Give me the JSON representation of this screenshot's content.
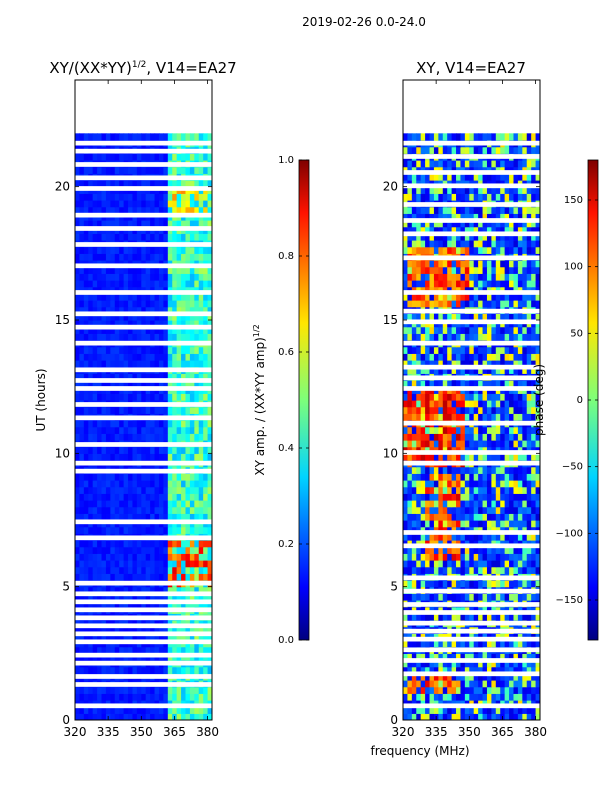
{
  "figure": {
    "suptitle": "2019-02-26 0.0-24.0",
    "xlabel": "frequency (MHz)"
  },
  "chart_data": [
    {
      "type": "heatmap",
      "title_main": "XY/(XX*YY)",
      "title_exp": "1/2",
      "title_rest": ", V14=EA27",
      "xlabel": "",
      "ylabel": "UT (hours)",
      "x_range": [
        320,
        382
      ],
      "y_range": [
        0,
        24
      ],
      "x_ticks": [
        320,
        335,
        350,
        365,
        380
      ],
      "y_ticks": [
        0,
        5,
        10,
        15,
        20
      ],
      "data_extent_hours": [
        0,
        22
      ],
      "colorbar": {
        "label_main": "XY amp. / (XX*YY amp)",
        "label_exp": "1/2",
        "range": [
          0.0,
          1.0
        ],
        "ticks": [
          "0.0",
          "0.2",
          "0.4",
          "0.6",
          "0.8",
          "1.0"
        ],
        "tick_values": [
          0.0,
          0.2,
          0.4,
          0.6,
          0.8,
          1.0
        ]
      },
      "background_level": 0.12,
      "hot_band_mhz": [
        362,
        380
      ],
      "bright_spots": [
        {
          "hour_start": 5.0,
          "hour_end": 6.5,
          "mhz_start": 362,
          "mhz_end": 380,
          "level": 0.9
        },
        {
          "hour_start": 19.0,
          "hour_end": 19.8,
          "mhz_start": 362,
          "mhz_end": 378,
          "level": 0.75
        }
      ],
      "blank_rows_hours": [
        0.5,
        1.3,
        1.6,
        2.1,
        2.4,
        2.9,
        3.2,
        3.5,
        3.8,
        4.1,
        4.4,
        4.7,
        5.1,
        6.8,
        7.4,
        9.3,
        9.6,
        10.3,
        11.3,
        11.8,
        12.4,
        12.7,
        13.1,
        14.1,
        14.7,
        15.2,
        16.0,
        17.0,
        17.8,
        18.4,
        18.9,
        19.9,
        20.3,
        20.8,
        21.3,
        21.6
      ]
    },
    {
      "type": "heatmap",
      "title_main": "XY, V14=EA27",
      "xlabel": "",
      "ylabel": "",
      "x_range": [
        320,
        382
      ],
      "y_range": [
        0,
        24
      ],
      "x_ticks": [
        320,
        335,
        350,
        365,
        380
      ],
      "y_ticks": [
        0,
        5,
        10,
        15,
        20
      ],
      "data_extent_hours": [
        0,
        22
      ],
      "colorbar": {
        "label_main": "phase (deg)",
        "range": [
          -180,
          180
        ],
        "ticks": [
          "150",
          "100",
          "50",
          "0",
          "−50",
          "−100",
          "−150"
        ],
        "tick_values": [
          150,
          100,
          50,
          0,
          -50,
          -100,
          -150
        ]
      },
      "hot_regions": [
        {
          "hour_start": 9.5,
          "hour_end": 12.3,
          "mhz_start": 320,
          "mhz_end": 347,
          "level": 160
        },
        {
          "hour_start": 15.5,
          "hour_end": 17.5,
          "mhz_start": 322,
          "mhz_end": 348,
          "level": 140
        },
        {
          "hour_start": 0.8,
          "hour_end": 1.6,
          "mhz_start": 322,
          "mhz_end": 345,
          "level": 150
        },
        {
          "hour_start": 6.0,
          "hour_end": 9.0,
          "mhz_start": 330,
          "mhz_end": 345,
          "level": 150
        }
      ],
      "blank_rows_hours": [
        0.5,
        1.7,
        2.2,
        2.6,
        3.0,
        3.3,
        3.6,
        4.0,
        4.3,
        4.8,
        5.3,
        6.5,
        7.0,
        9.6,
        10.0,
        11.1,
        12.4,
        12.8,
        13.2,
        14.1,
        14.9,
        15.3,
        16.0,
        17.3,
        18.2,
        18.7,
        19.3,
        20.0,
        20.5,
        21.1,
        21.6
      ]
    }
  ]
}
